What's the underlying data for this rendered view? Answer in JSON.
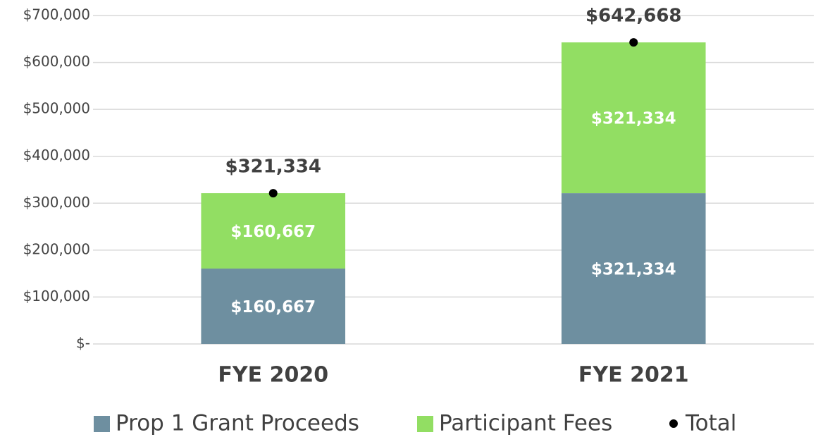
{
  "chart_data": {
    "type": "bar",
    "stacked": true,
    "categories": [
      "FYE 2020",
      "FYE 2021"
    ],
    "series": [
      {
        "name": "Prop 1 Grant Proceeds",
        "color": "#6e8fa0",
        "values": [
          160667,
          321334
        ],
        "value_labels": [
          "$160,667",
          "$321,334"
        ]
      },
      {
        "name": "Participant Fees",
        "color": "#92de63",
        "values": [
          160667,
          321334
        ],
        "value_labels": [
          "$160,667",
          "$321,334"
        ]
      },
      {
        "name": "Total",
        "color": "#000000",
        "type": "scatter",
        "values": [
          321334,
          642668
        ],
        "value_labels": [
          "$321,334",
          "$642,668"
        ]
      }
    ],
    "ylim": [
      0,
      700000
    ],
    "yticks": [
      {
        "value": 0,
        "label": "$-"
      },
      {
        "value": 100000,
        "label": "$100,000"
      },
      {
        "value": 200000,
        "label": "$200,000"
      },
      {
        "value": 300000,
        "label": "$300,000"
      },
      {
        "value": 400000,
        "label": "$400,000"
      },
      {
        "value": 500000,
        "label": "$500,000"
      },
      {
        "value": 600000,
        "label": "$600,000"
      },
      {
        "value": 700000,
        "label": "$700,000"
      }
    ],
    "grid": true,
    "legend": "bottom"
  }
}
